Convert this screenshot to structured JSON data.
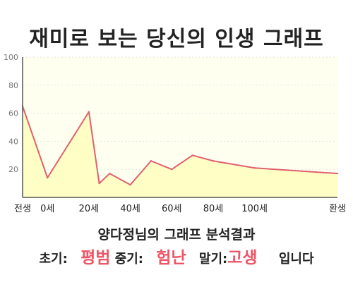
{
  "title": "재미로 보는 당신의 인생 그래프",
  "subtitle": "양다정님의 그래프 분석결과",
  "result": {
    "early_label": "초기:",
    "early_value": "평범",
    "mid_label": "중기:",
    "mid_value": "험난",
    "late_label": "말기:",
    "late_value": "고생",
    "suffix": "입니다"
  },
  "colors": {
    "line": "#e06070",
    "fill": "#ffffc0",
    "plot_bg": "#fffff0",
    "highlight": "#ee5566"
  },
  "chart_data": {
    "type": "area",
    "title": "",
    "xlabel": "",
    "ylabel": "",
    "ylim": [
      0,
      100
    ],
    "yticks": [
      20,
      40,
      60,
      80,
      100
    ],
    "x_tick_labels": [
      "전생",
      "0세",
      "20세",
      "40세",
      "60세",
      "80세",
      "100세",
      "환생"
    ],
    "grid": true,
    "series": [
      {
        "x": [
          "전생",
          "0세",
          "20세",
          "25세",
          "30세",
          "40세",
          "50세",
          "60세",
          "70세",
          "80세",
          "100세",
          "환생"
        ],
        "values": [
          65,
          14,
          61,
          10,
          17,
          9,
          26,
          20,
          30,
          26,
          21,
          17
        ]
      }
    ]
  }
}
